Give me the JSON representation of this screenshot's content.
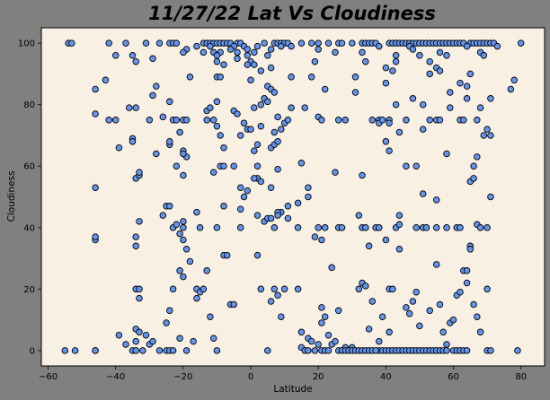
{
  "chart_data": {
    "type": "scatter",
    "title": "11/27/22 Lat Vs Cloudiness",
    "xlabel": "Latitude",
    "ylabel": "Cloudiness",
    "xlim": [
      -62,
      87
    ],
    "ylim": [
      -5,
      105
    ],
    "xticks": [
      -60,
      -40,
      -20,
      0,
      20,
      40,
      60,
      80
    ],
    "yticks": [
      0,
      20,
      40,
      60,
      80,
      100
    ],
    "grid": false,
    "legend": "none",
    "colors": {
      "figure_bg": "#808080",
      "plot_bg": "#F8F0E3",
      "marker_fill": "#6495ED",
      "marker_edge": "#000000"
    },
    "points": [
      [
        -54,
        100
      ],
      [
        -53,
        100
      ],
      [
        -42,
        100
      ],
      [
        -37,
        100
      ],
      [
        -31,
        100
      ],
      [
        -27,
        100
      ],
      [
        -24,
        100
      ],
      [
        -23,
        100
      ],
      [
        -22,
        100
      ],
      [
        -14,
        100
      ],
      [
        -13,
        100
      ],
      [
        -12,
        100
      ],
      [
        -11,
        100
      ],
      [
        -10,
        100
      ],
      [
        -9,
        100
      ],
      [
        -8,
        100
      ],
      [
        -7,
        100
      ],
      [
        -6,
        100
      ],
      [
        -4,
        100
      ],
      [
        -3,
        100
      ],
      [
        4,
        100
      ],
      [
        7,
        100
      ],
      [
        8,
        100
      ],
      [
        9,
        100
      ],
      [
        10,
        100
      ],
      [
        11,
        100
      ],
      [
        15,
        100
      ],
      [
        18,
        100
      ],
      [
        20,
        100
      ],
      [
        23,
        100
      ],
      [
        26,
        100
      ],
      [
        27,
        100
      ],
      [
        30,
        100
      ],
      [
        33,
        100
      ],
      [
        34,
        100
      ],
      [
        35,
        100
      ],
      [
        36,
        100
      ],
      [
        37,
        100
      ],
      [
        41,
        100
      ],
      [
        42,
        100
      ],
      [
        43,
        100
      ],
      [
        44,
        100
      ],
      [
        45,
        100
      ],
      [
        46,
        100
      ],
      [
        47,
        100
      ],
      [
        48,
        100
      ],
      [
        49,
        100
      ],
      [
        50,
        100
      ],
      [
        51,
        100
      ],
      [
        52,
        100
      ],
      [
        53,
        100
      ],
      [
        54,
        100
      ],
      [
        55,
        100
      ],
      [
        56,
        100
      ],
      [
        57,
        100
      ],
      [
        58,
        100
      ],
      [
        59,
        100
      ],
      [
        60,
        100
      ],
      [
        61,
        100
      ],
      [
        62,
        100
      ],
      [
        63,
        100
      ],
      [
        65,
        100
      ],
      [
        66,
        100
      ],
      [
        67,
        100
      ],
      [
        68,
        100
      ],
      [
        69,
        100
      ],
      [
        70,
        100
      ],
      [
        71,
        100
      ],
      [
        72,
        100
      ],
      [
        80,
        100
      ],
      [
        -16,
        99
      ],
      [
        -12,
        99
      ],
      [
        -5,
        99
      ],
      [
        -2,
        99
      ],
      [
        2,
        99
      ],
      [
        9,
        99
      ],
      [
        12,
        99
      ],
      [
        38,
        99
      ],
      [
        47,
        99
      ],
      [
        64,
        99
      ],
      [
        73,
        99
      ],
      [
        -19,
        98
      ],
      [
        -6,
        98
      ],
      [
        -1,
        98
      ],
      [
        6,
        98
      ],
      [
        20,
        98
      ],
      [
        48,
        98
      ],
      [
        -20,
        97
      ],
      [
        -14,
        97
      ],
      [
        -11,
        97
      ],
      [
        -9,
        97
      ],
      [
        -4,
        97
      ],
      [
        1,
        97
      ],
      [
        25,
        97
      ],
      [
        33,
        97
      ],
      [
        56,
        97
      ],
      [
        68,
        97
      ],
      [
        -35,
        96
      ],
      [
        -10,
        96
      ],
      [
        -1,
        96
      ],
      [
        5,
        96
      ],
      [
        43,
        96
      ],
      [
        50,
        96
      ],
      [
        58,
        96
      ],
      [
        69,
        96
      ],
      [
        -4,
        95
      ],
      [
        -29,
        95
      ],
      [
        0,
        94
      ],
      [
        19,
        94
      ],
      [
        -10,
        94
      ],
      [
        34,
        94
      ],
      [
        43,
        94
      ],
      [
        53,
        94
      ],
      [
        1,
        93
      ],
      [
        -1,
        93
      ],
      [
        -8,
        93
      ],
      [
        6,
        92
      ],
      [
        40,
        92
      ],
      [
        55,
        92
      ],
      [
        42,
        91
      ],
      [
        -40,
        96
      ],
      [
        -34,
        94
      ],
      [
        -18,
        89
      ],
      [
        -10,
        89
      ],
      [
        -9,
        89
      ],
      [
        0,
        88
      ],
      [
        12,
        89
      ],
      [
        18,
        89
      ],
      [
        31,
        89
      ],
      [
        62,
        87
      ],
      [
        64,
        86
      ],
      [
        71,
        82
      ],
      [
        77,
        85
      ],
      [
        78,
        88
      ],
      [
        65,
        90
      ],
      [
        56,
        91
      ],
      [
        53,
        90
      ],
      [
        3,
        91
      ],
      [
        -46,
        85
      ],
      [
        -43,
        88
      ],
      [
        -28,
        86
      ],
      [
        5,
        86
      ],
      [
        6,
        85
      ],
      [
        7,
        84
      ],
      [
        40,
        87
      ],
      [
        59,
        84
      ],
      [
        64,
        82
      ],
      [
        -29,
        83
      ],
      [
        -24,
        81
      ],
      [
        -10,
        81
      ],
      [
        4,
        82
      ],
      [
        22,
        85
      ],
      [
        31,
        84
      ],
      [
        59,
        79
      ],
      [
        68,
        79
      ],
      [
        -36,
        79
      ],
      [
        -26,
        76
      ],
      [
        -13,
        78
      ],
      [
        -12,
        79
      ],
      [
        -5,
        78
      ],
      [
        -4,
        77
      ],
      [
        1,
        79
      ],
      [
        3,
        80
      ],
      [
        5,
        81
      ],
      [
        12,
        79
      ],
      [
        16,
        79
      ],
      [
        20,
        76
      ],
      [
        21,
        75
      ],
      [
        26,
        75
      ],
      [
        28,
        75
      ],
      [
        36,
        75
      ],
      [
        38,
        75
      ],
      [
        41,
        75
      ],
      [
        46,
        75
      ],
      [
        53,
        75
      ],
      [
        55,
        75
      ],
      [
        56,
        75
      ],
      [
        62,
        75
      ],
      [
        63,
        75
      ],
      [
        67,
        75
      ],
      [
        43,
        80
      ],
      [
        48,
        82
      ],
      [
        51,
        80
      ],
      [
        -46,
        77
      ],
      [
        -42,
        75
      ],
      [
        -40,
        75
      ],
      [
        -34,
        79
      ],
      [
        -30,
        75
      ],
      [
        -23,
        75
      ],
      [
        -22,
        75
      ],
      [
        -20,
        75
      ],
      [
        -19,
        75
      ],
      [
        -13,
        75
      ],
      [
        -11,
        75
      ],
      [
        -10,
        73
      ],
      [
        -9,
        70
      ],
      [
        -2,
        74
      ],
      [
        -1,
        72
      ],
      [
        0,
        72
      ],
      [
        3,
        73
      ],
      [
        9,
        72
      ],
      [
        10,
        74
      ],
      [
        11,
        75
      ],
      [
        7,
        71
      ],
      [
        8,
        76
      ],
      [
        38,
        74
      ],
      [
        39,
        75
      ],
      [
        41,
        74
      ],
      [
        44,
        71
      ],
      [
        51,
        72
      ],
      [
        69,
        70
      ],
      [
        70,
        72
      ],
      [
        71,
        70
      ],
      [
        -39,
        66
      ],
      [
        -24,
        67
      ],
      [
        -24,
        68
      ],
      [
        -21,
        71
      ],
      [
        -20,
        65
      ],
      [
        -19,
        63
      ],
      [
        -20,
        64
      ],
      [
        -8,
        66
      ],
      [
        -3,
        70
      ],
      [
        1,
        65
      ],
      [
        2,
        67
      ],
      [
        6,
        66
      ],
      [
        7,
        67
      ],
      [
        8,
        68
      ],
      [
        40,
        68
      ],
      [
        41,
        65
      ],
      [
        58,
        64
      ],
      [
        66,
        60
      ],
      [
        67,
        63
      ],
      [
        -46,
        53
      ],
      [
        -35,
        69
      ],
      [
        -35,
        68
      ],
      [
        -34,
        56
      ],
      [
        -33,
        57
      ],
      [
        -33,
        58
      ],
      [
        -28,
        64
      ],
      [
        -22,
        60
      ],
      [
        -20,
        57
      ],
      [
        -11,
        58
      ],
      [
        -9,
        60
      ],
      [
        -8,
        60
      ],
      [
        -5,
        60
      ],
      [
        -3,
        53
      ],
      [
        -1,
        52
      ],
      [
        2,
        60
      ],
      [
        2,
        56
      ],
      [
        3,
        55
      ],
      [
        6,
        53
      ],
      [
        8,
        59
      ],
      [
        15,
        61
      ],
      [
        17,
        53
      ],
      [
        25,
        58
      ],
      [
        33,
        57
      ],
      [
        46,
        60
      ],
      [
        49,
        60
      ],
      [
        51,
        51
      ],
      [
        55,
        49
      ],
      [
        65,
        55
      ],
      [
        66,
        56
      ],
      [
        71,
        50
      ],
      [
        -46,
        36
      ],
      [
        -46,
        37
      ],
      [
        -34,
        34
      ],
      [
        -34,
        37
      ],
      [
        -33,
        42
      ],
      [
        -26,
        44
      ],
      [
        -25,
        47
      ],
      [
        -24,
        47
      ],
      [
        -23,
        40
      ],
      [
        -22,
        41
      ],
      [
        -21,
        38
      ],
      [
        -20,
        42
      ],
      [
        -20,
        40
      ],
      [
        -20,
        36
      ],
      [
        -19,
        33
      ],
      [
        -18,
        29
      ],
      [
        -16,
        45
      ],
      [
        -15,
        40
      ],
      [
        -10,
        40
      ],
      [
        -8,
        47
      ],
      [
        -3,
        46
      ],
      [
        -2,
        50
      ],
      [
        1,
        56
      ],
      [
        2,
        44
      ],
      [
        4,
        42
      ],
      [
        5,
        43
      ],
      [
        6,
        43
      ],
      [
        7,
        40
      ],
      [
        9,
        45
      ],
      [
        8,
        45
      ],
      [
        8,
        44
      ],
      [
        11,
        47
      ],
      [
        11,
        43
      ],
      [
        14,
        40
      ],
      [
        14,
        48
      ],
      [
        17,
        50
      ],
      [
        19,
        37
      ],
      [
        20,
        40
      ],
      [
        21,
        36
      ],
      [
        22,
        40
      ],
      [
        26,
        40
      ],
      [
        27,
        40
      ],
      [
        32,
        44
      ],
      [
        33,
        40
      ],
      [
        34,
        40
      ],
      [
        35,
        34
      ],
      [
        37,
        40
      ],
      [
        38,
        40
      ],
      [
        40,
        36
      ],
      [
        43,
        40
      ],
      [
        44,
        44
      ],
      [
        44,
        41
      ],
      [
        49,
        40
      ],
      [
        51,
        40
      ],
      [
        52,
        40
      ],
      [
        55,
        40
      ],
      [
        58,
        40
      ],
      [
        61,
        40
      ],
      [
        62,
        40
      ],
      [
        65,
        34
      ],
      [
        67,
        41
      ],
      [
        68,
        40
      ],
      [
        70,
        40
      ],
      [
        -34,
        20
      ],
      [
        -33,
        20
      ],
      [
        -33,
        17
      ],
      [
        -25,
        9
      ],
      [
        -24,
        13
      ],
      [
        -23,
        20
      ],
      [
        -21,
        26
      ],
      [
        -20,
        24
      ],
      [
        -16,
        20
      ],
      [
        -16,
        17
      ],
      [
        -15,
        19
      ],
      [
        -14,
        20
      ],
      [
        -13,
        26
      ],
      [
        -12,
        11
      ],
      [
        -8,
        31
      ],
      [
        -7,
        31
      ],
      [
        -3,
        40
      ],
      [
        2,
        31
      ],
      [
        3,
        20
      ],
      [
        6,
        16
      ],
      [
        7,
        20
      ],
      [
        8,
        18
      ],
      [
        9,
        11
      ],
      [
        10,
        20
      ],
      [
        14,
        20
      ],
      [
        15,
        6
      ],
      [
        17,
        4
      ],
      [
        21,
        14
      ],
      [
        21,
        9
      ],
      [
        22,
        11
      ],
      [
        23,
        5
      ],
      [
        24,
        27
      ],
      [
        26,
        13
      ],
      [
        28,
        1
      ],
      [
        30,
        1
      ],
      [
        32,
        20
      ],
      [
        33,
        22
      ],
      [
        34,
        21
      ],
      [
        35,
        7
      ],
      [
        36,
        16
      ],
      [
        38,
        0
      ],
      [
        39,
        11
      ],
      [
        41,
        20
      ],
      [
        41,
        6
      ],
      [
        42,
        20
      ],
      [
        44,
        33
      ],
      [
        46,
        14
      ],
      [
        47,
        12
      ],
      [
        48,
        16
      ],
      [
        49,
        19
      ],
      [
        50,
        8
      ],
      [
        53,
        13
      ],
      [
        55,
        28
      ],
      [
        56,
        15
      ],
      [
        57,
        6
      ],
      [
        58,
        2
      ],
      [
        59,
        9
      ],
      [
        60,
        10
      ],
      [
        61,
        18
      ],
      [
        62,
        19
      ],
      [
        63,
        26
      ],
      [
        64,
        26
      ],
      [
        64,
        22
      ],
      [
        65,
        33
      ],
      [
        66,
        15
      ],
      [
        67,
        11
      ],
      [
        68,
        6
      ],
      [
        70,
        20
      ],
      [
        -55,
        0
      ],
      [
        -52,
        0
      ],
      [
        -46,
        0
      ],
      [
        -46,
        0
      ],
      [
        -39,
        5
      ],
      [
        -37,
        2
      ],
      [
        -35,
        0
      ],
      [
        -34,
        0
      ],
      [
        -34,
        3
      ],
      [
        -34,
        7
      ],
      [
        -33,
        6
      ],
      [
        -32,
        0
      ],
      [
        -31,
        5
      ],
      [
        -30,
        2
      ],
      [
        -29,
        3
      ],
      [
        -27,
        0
      ],
      [
        -25,
        0
      ],
      [
        -24,
        0
      ],
      [
        -23,
        0
      ],
      [
        -21,
        4
      ],
      [
        -19,
        0
      ],
      [
        -17,
        3
      ],
      [
        -11,
        4
      ],
      [
        -10,
        0
      ],
      [
        -6,
        15
      ],
      [
        -5,
        15
      ],
      [
        5,
        0
      ],
      [
        15,
        1
      ],
      [
        16,
        0
      ],
      [
        17,
        0
      ],
      [
        18,
        3
      ],
      [
        19,
        0
      ],
      [
        20,
        2
      ],
      [
        21,
        0
      ],
      [
        22,
        0
      ],
      [
        23,
        0
      ],
      [
        24,
        2
      ],
      [
        25,
        3
      ],
      [
        26,
        0
      ],
      [
        27,
        0
      ],
      [
        28,
        0
      ],
      [
        29,
        0
      ],
      [
        30,
        0
      ],
      [
        31,
        0
      ],
      [
        32,
        0
      ],
      [
        33,
        0
      ],
      [
        34,
        0
      ],
      [
        35,
        0
      ],
      [
        36,
        0
      ],
      [
        37,
        0
      ],
      [
        38,
        3
      ],
      [
        39,
        0
      ],
      [
        40,
        0
      ],
      [
        41,
        0
      ],
      [
        42,
        0
      ],
      [
        43,
        0
      ],
      [
        44,
        0
      ],
      [
        45,
        0
      ],
      [
        46,
        0
      ],
      [
        47,
        0
      ],
      [
        48,
        0
      ],
      [
        49,
        0
      ],
      [
        50,
        0
      ],
      [
        51,
        0
      ],
      [
        52,
        0
      ],
      [
        53,
        0
      ],
      [
        54,
        0
      ],
      [
        55,
        0
      ],
      [
        56,
        0
      ],
      [
        57,
        0
      ],
      [
        58,
        0
      ],
      [
        60,
        0
      ],
      [
        61,
        0
      ],
      [
        62,
        0
      ],
      [
        63,
        0
      ],
      [
        64,
        0
      ],
      [
        70,
        0
      ],
      [
        71,
        0
      ],
      [
        79,
        0
      ]
    ]
  }
}
